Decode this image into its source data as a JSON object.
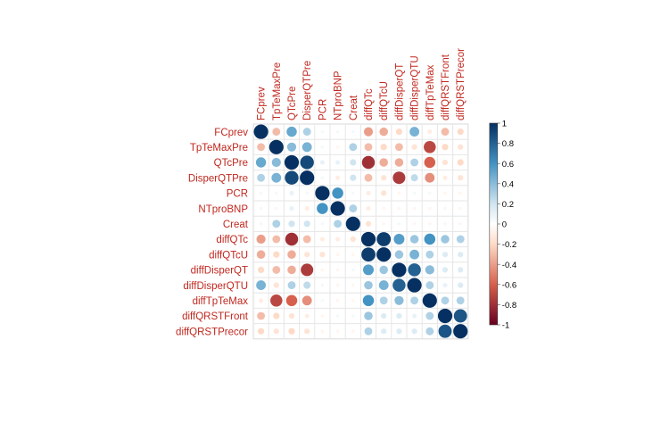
{
  "chart_data": {
    "type": "heatmap",
    "style": "corrplot-circle",
    "variables": [
      "FCprev",
      "TpTeMaxPre",
      "QTcPre",
      "DisperQTPre",
      "PCR",
      "NTproBNP",
      "Creat",
      "diffQTc",
      "diffQTcU",
      "diffDisperQT",
      "diffDisperQTU",
      "diffTpTeMax",
      "diffQRSTFront",
      "diffQRSTPrecor"
    ],
    "matrix": [
      [
        1,
        -0.3,
        0.5,
        0.3,
        0.05,
        0.05,
        0.05,
        -0.4,
        -0.35,
        -0.2,
        0.45,
        -0.1,
        -0.3,
        -0.2
      ],
      [
        -0.3,
        1,
        0.4,
        0.45,
        0.05,
        -0.05,
        0.3,
        -0.3,
        -0.2,
        -0.3,
        -0.15,
        -0.7,
        -0.2,
        -0.15
      ],
      [
        0.5,
        0.4,
        1,
        0.9,
        0.1,
        0.1,
        0.2,
        -0.8,
        -0.35,
        -0.35,
        0.3,
        -0.6,
        -0.15,
        -0.2
      ],
      [
        0.3,
        0.45,
        0.9,
        1,
        0.05,
        -0.1,
        0.2,
        -0.3,
        -0.15,
        -0.75,
        0.25,
        -0.45,
        -0.1,
        -0.15
      ],
      [
        0.05,
        0.05,
        0.1,
        0.05,
        1,
        0.6,
        0.05,
        -0.1,
        -0.15,
        -0.05,
        0.05,
        0.05,
        -0.05,
        -0.05
      ],
      [
        0.05,
        -0.05,
        0.1,
        -0.1,
        0.6,
        1,
        0.3,
        -0.1,
        -0.05,
        -0.05,
        -0.05,
        -0.05,
        0.05,
        -0.05
      ],
      [
        0.05,
        0.3,
        0.2,
        0.2,
        0.05,
        0.3,
        1,
        -0.15,
        -0.05,
        0.05,
        -0.05,
        -0.05,
        0.05,
        -0.05
      ],
      [
        -0.4,
        -0.3,
        -0.8,
        -0.3,
        -0.1,
        -0.1,
        -0.15,
        1,
        0.95,
        0.55,
        0.35,
        0.6,
        0.35,
        0.3
      ],
      [
        -0.35,
        -0.2,
        -0.35,
        -0.15,
        -0.15,
        -0.05,
        -0.05,
        0.95,
        1,
        0.35,
        0.45,
        0.3,
        0.15,
        0.15
      ],
      [
        -0.2,
        -0.3,
        -0.35,
        -0.75,
        -0.05,
        -0.05,
        0.05,
        0.55,
        0.35,
        1,
        0.8,
        0.4,
        0.15,
        0.15
      ],
      [
        0.45,
        -0.15,
        0.3,
        0.25,
        0.05,
        -0.05,
        -0.05,
        0.35,
        0.45,
        0.8,
        1,
        0.3,
        0.1,
        0.15
      ],
      [
        -0.1,
        -0.7,
        -0.6,
        -0.45,
        0.05,
        -0.05,
        -0.05,
        0.6,
        0.3,
        0.4,
        0.3,
        1,
        0.3,
        0.3
      ],
      [
        -0.3,
        -0.2,
        -0.15,
        -0.1,
        -0.05,
        0.05,
        0.05,
        0.35,
        0.15,
        0.15,
        0.1,
        0.3,
        1,
        0.85
      ],
      [
        -0.2,
        -0.15,
        -0.2,
        -0.15,
        -0.05,
        -0.05,
        -0.05,
        0.3,
        0.15,
        0.15,
        0.15,
        0.3,
        0.85,
        1
      ]
    ],
    "color_scale": {
      "min": -1,
      "max": 1,
      "ticks": [
        1,
        0.8,
        0.6,
        0.4,
        0.2,
        0,
        -0.2,
        -0.4,
        -0.6,
        -0.8,
        -1
      ],
      "stops": [
        {
          "v": -1,
          "color": "#67001f"
        },
        {
          "v": -0.6,
          "color": "#d6604d"
        },
        {
          "v": -0.2,
          "color": "#fddbc7"
        },
        {
          "v": 0,
          "color": "#ffffff"
        },
        {
          "v": 0.2,
          "color": "#d1e5f0"
        },
        {
          "v": 0.6,
          "color": "#4393c3"
        },
        {
          "v": 1,
          "color": "#053061"
        }
      ]
    },
    "label_color": "#c0281f",
    "grid": true,
    "legend_position": "right"
  }
}
